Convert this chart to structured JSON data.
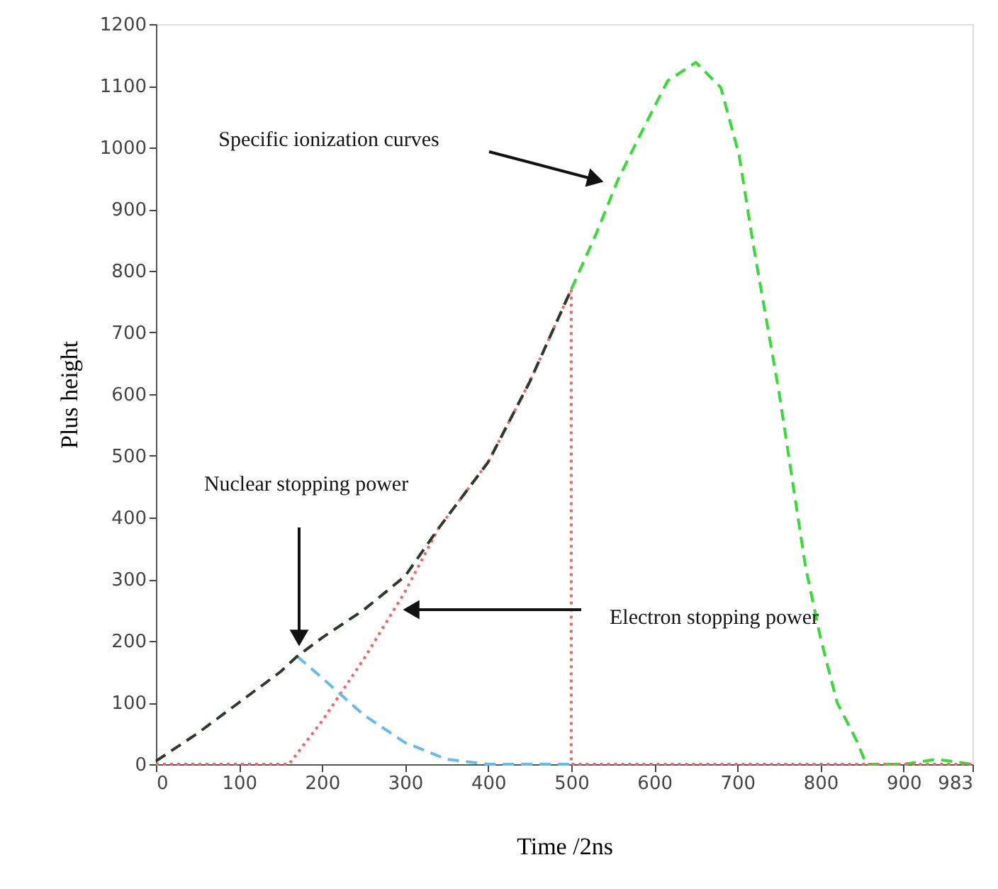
{
  "chart_data": {
    "type": "line",
    "xlabel": "Time /2ns",
    "ylabel": "Plus height",
    "xlim": [
      0,
      983
    ],
    "ylim": [
      0,
      1200
    ],
    "xticks": [
      0,
      100,
      200,
      300,
      400,
      500,
      600,
      700,
      800,
      900,
      983
    ],
    "yticks": [
      0,
      100,
      200,
      300,
      400,
      500,
      600,
      700,
      800,
      900,
      1000,
      1100,
      1200
    ],
    "grid": false,
    "marker": "none",
    "series": [
      {
        "color": "#33dd33",
        "line_style": "dashed",
        "x": [
          500,
          530,
          556,
          582,
          616,
          650,
          680,
          702,
          719,
          750,
          782,
          800,
          820,
          844,
          855,
          900,
          940,
          983
        ],
        "values": [
          770,
          860,
          947,
          1018,
          1108,
          1138,
          1097,
          988,
          843,
          604,
          320,
          205,
          100,
          37,
          0,
          0,
          8,
          0
        ]
      },
      {
        "color": "#ee6666",
        "line_style": "dotted",
        "x": [
          0,
          160,
          200,
          250,
          300,
          340,
          400,
          450,
          500,
          500,
          983
        ],
        "values": [
          0,
          0,
          70,
          170,
          280,
          382,
          490,
          620,
          770,
          0,
          0
        ]
      },
      {
        "color": "#66bbee",
        "line_style": "dashed",
        "x": [
          170,
          200,
          250,
          300,
          350,
          400,
          500
        ],
        "values": [
          175,
          140,
          80,
          35,
          8,
          0,
          0
        ]
      },
      {
        "color": "#2b3a2b",
        "line_style": "dashed",
        "x": [
          0,
          50,
          100,
          150,
          170,
          200,
          250,
          300,
          340,
          400,
          450,
          500
        ],
        "values": [
          5,
          50,
          100,
          150,
          175,
          205,
          250,
          305,
          382,
          490,
          620,
          770
        ]
      }
    ],
    "annotations": [
      "Specific ionization  curves",
      "Nuclear stopping power",
      "Electron stopping power"
    ]
  }
}
